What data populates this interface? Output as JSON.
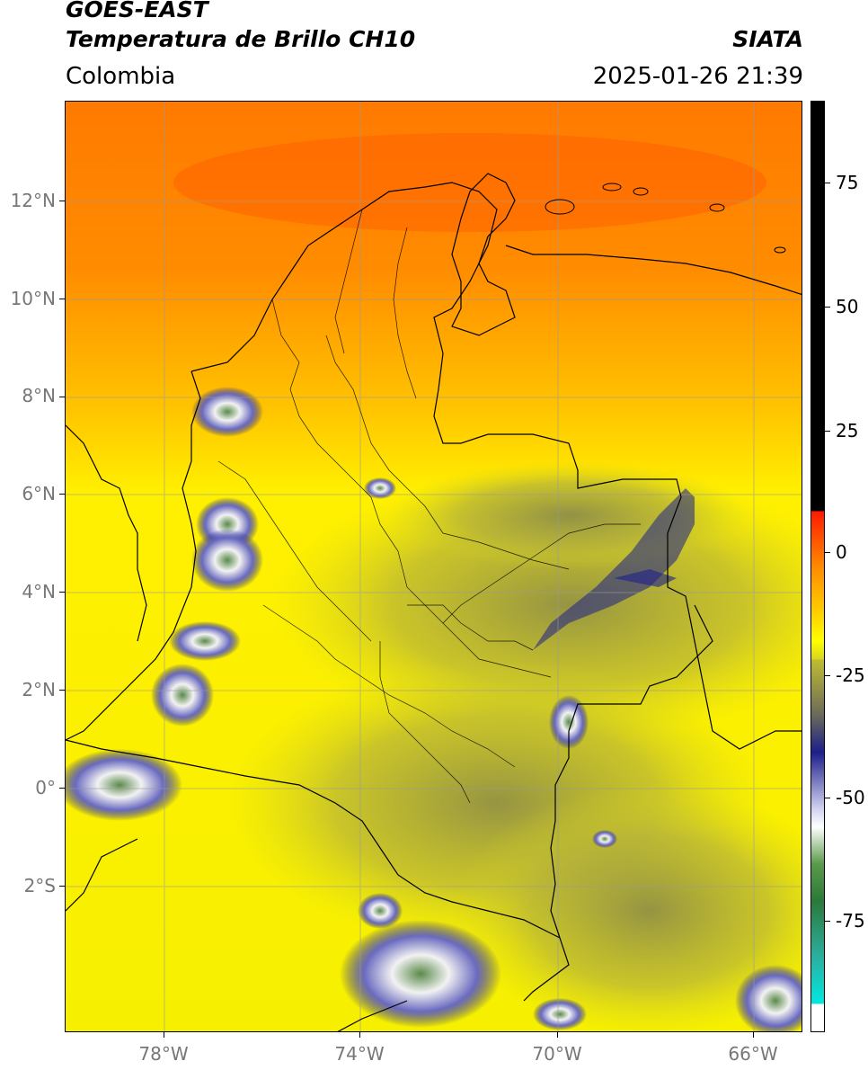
{
  "header": {
    "title_line1": "GOES-EAST",
    "title_line2": "Temperatura de Brillo CH10",
    "brand": "SIATA",
    "region": "Colombia",
    "datetime": "2025-01-26 21:39"
  },
  "map": {
    "lat_ticks": [
      "12°N",
      "10°N",
      "8°N",
      "6°N",
      "4°N",
      "2°N",
      "0°",
      "2°S"
    ],
    "lon_ticks": [
      "78°W",
      "74°W",
      "70°W",
      "66°W"
    ],
    "colors": {
      "warm": "#ff6a00",
      "mid": "#ffcc00",
      "cool": "#f4f000",
      "olive": "#c8c52a",
      "cloud_dark": "#1c1f8a",
      "cloud_light": "#ffffff",
      "cloud_green": "#6a9a5a"
    }
  },
  "colorbar": {
    "ticks": [
      "75",
      "50",
      "25",
      "0",
      "-25",
      "-50",
      "-75"
    ],
    "colors": [
      "#000000",
      "#ff1a00",
      "#ffaa00",
      "#ffff00",
      "#8a8a3a",
      "#1c1f8a",
      "#ffffff",
      "#3a8a3a",
      "#00e0d0"
    ]
  }
}
